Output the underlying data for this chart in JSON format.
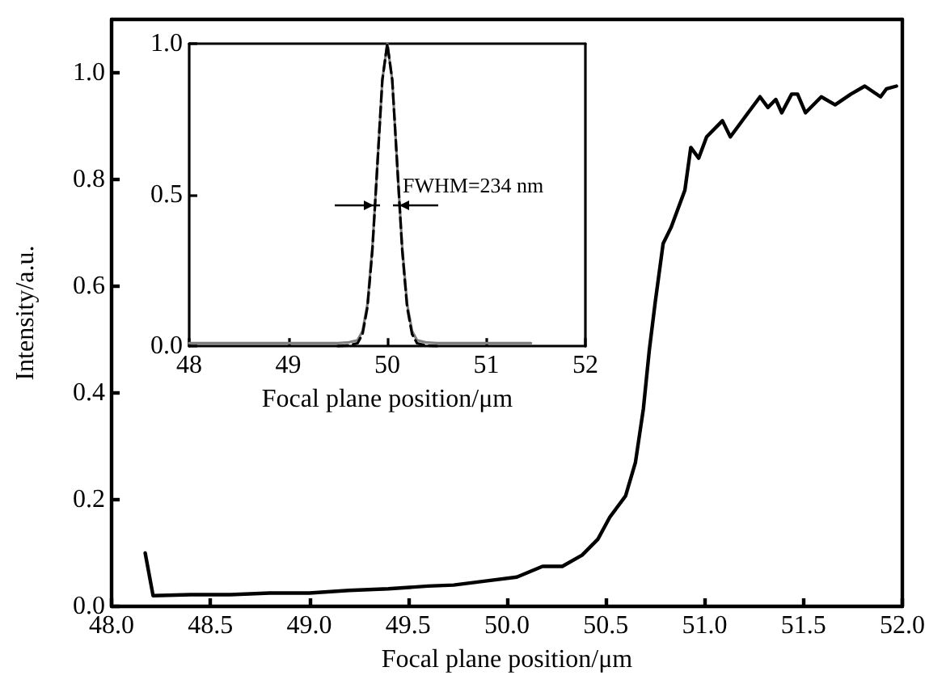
{
  "chart_data": [
    {
      "type": "line",
      "xlabel": "Focal plane position/μm",
      "ylabel": "Intensity/a.u.",
      "xlim": [
        48,
        52
      ],
      "ylim": [
        0,
        1.1
      ],
      "xticks": [
        {
          "value": 48,
          "label": "48.0"
        },
        {
          "value": 48.5,
          "label": "48.5"
        },
        {
          "value": 49,
          "label": "49.0"
        },
        {
          "value": 49.5,
          "label": "49.5"
        },
        {
          "value": 50,
          "label": "50.0"
        },
        {
          "value": 50.5,
          "label": "50.5"
        },
        {
          "value": 51,
          "label": "51.0"
        },
        {
          "value": 51.5,
          "label": "51.5"
        },
        {
          "value": 52,
          "label": "52.0"
        }
      ],
      "yticks": [
        {
          "value": 0,
          "label": "0.0"
        },
        {
          "value": 0.2,
          "label": "0.2"
        },
        {
          "value": 0.4,
          "label": "0.4"
        },
        {
          "value": 0.6,
          "label": "0.6"
        },
        {
          "value": 0.8,
          "label": "0.8"
        },
        {
          "value": 1,
          "label": "1.0"
        }
      ],
      "grid": false,
      "marker": "none",
      "line_style": "solid",
      "series": [
        {
          "color": "#000000",
          "x": [
            48.17,
            48.21,
            48.4,
            48.6,
            48.8,
            49.0,
            49.2,
            49.4,
            49.6,
            49.73,
            49.9,
            50.05,
            50.18,
            50.28,
            50.38,
            50.46,
            50.52,
            50.6,
            50.65,
            50.69,
            50.72,
            50.75,
            50.79,
            50.83,
            50.9,
            50.93,
            50.97,
            51.01,
            51.09,
            51.13,
            51.21,
            51.28,
            51.32,
            51.36,
            51.39,
            51.44,
            51.47,
            51.51,
            51.59,
            51.66,
            51.74,
            51.81,
            51.89,
            51.92,
            51.97
          ],
          "values": [
            0.1,
            0.02,
            0.022,
            0.022,
            0.025,
            0.025,
            0.03,
            0.033,
            0.038,
            0.04,
            0.048,
            0.055,
            0.075,
            0.075,
            0.096,
            0.126,
            0.167,
            0.207,
            0.27,
            0.37,
            0.48,
            0.57,
            0.68,
            0.71,
            0.78,
            0.86,
            0.84,
            0.88,
            0.91,
            0.88,
            0.92,
            0.955,
            0.935,
            0.95,
            0.925,
            0.96,
            0.96,
            0.925,
            0.955,
            0.94,
            0.96,
            0.975,
            0.955,
            0.97,
            0.975
          ]
        }
      ]
    },
    {
      "type": "line",
      "xlabel": "Focal plane position/μm",
      "xlim": [
        48,
        52
      ],
      "ylim": [
        0,
        1
      ],
      "xticks": [
        48,
        49,
        50,
        51,
        52
      ],
      "yticks": [
        {
          "value": 0,
          "label": "0.0"
        },
        {
          "value": 0.5,
          "label": "0.5"
        },
        {
          "value": 1,
          "label": "1.0"
        }
      ],
      "grid": false,
      "marker": "none",
      "annotations": [
        "FWHM=234 nm"
      ],
      "series": [
        {
          "color": "#808080",
          "line_style": "solid",
          "x": [
            48,
            48.5,
            49,
            49.5,
            49.6,
            49.7,
            49.75,
            49.8,
            49.85,
            49.9,
            49.95,
            50,
            50.05,
            50.1,
            50.15,
            50.2,
            50.25,
            50.3,
            50.4,
            50.5,
            51,
            51.45
          ],
          "values": [
            0.01,
            0.01,
            0.01,
            0.01,
            0.012,
            0.02,
            0.05,
            0.14,
            0.33,
            0.6,
            0.88,
            1,
            0.88,
            0.6,
            0.33,
            0.14,
            0.05,
            0.02,
            0.012,
            0.01,
            0.01,
            0.01
          ]
        },
        {
          "color": "#000000",
          "line_style": "dashed",
          "x": [
            49.5,
            49.6,
            49.7,
            49.75,
            49.8,
            49.85,
            49.9,
            49.95,
            50,
            50.05,
            50.1,
            50.15,
            50.2,
            50.25,
            50.3,
            50.4,
            50.5
          ],
          "values": [
            0,
            0.002,
            0.01,
            0.04,
            0.13,
            0.32,
            0.6,
            0.88,
            1,
            0.88,
            0.6,
            0.32,
            0.13,
            0.04,
            0.01,
            0.002,
            0
          ]
        }
      ]
    }
  ]
}
